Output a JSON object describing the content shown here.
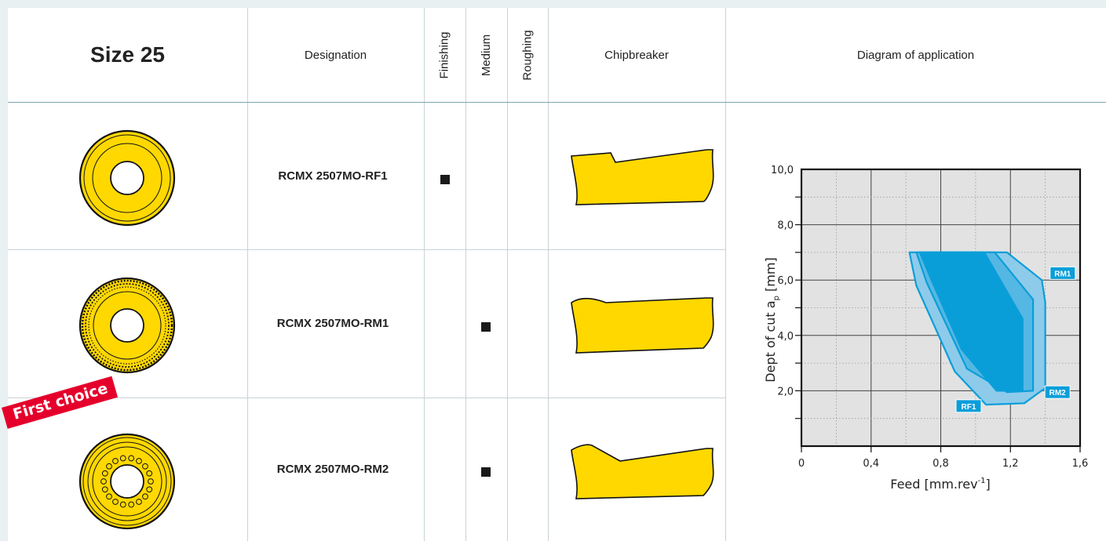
{
  "header": {
    "size_title": "Size 25",
    "designation": "Designation",
    "finishing": "Finishing",
    "medium": "Medium",
    "roughing": "Roughing",
    "chipbreaker": "Chipbreaker",
    "diagram": "Diagram of application"
  },
  "rows": [
    {
      "designation": "RCMX 2507MO-RF1",
      "finishing": "■",
      "medium": "",
      "roughing": ""
    },
    {
      "designation": "RCMX 2507MO-RM1",
      "finishing": "",
      "medium": "■",
      "roughing": ""
    },
    {
      "designation": "RCMX 2507MO-RM2",
      "finishing": "",
      "medium": "■",
      "roughing": ""
    }
  ],
  "badge": {
    "first_choice": "First choice"
  },
  "colors": {
    "insert_yellow": "#ffd800",
    "area_blue": "#0a9ed9",
    "area_blue_mid": "#55b7e3",
    "area_blue_light": "#8ecbea",
    "badge_red": "#e4002b",
    "plot_bg": "#e2e2e2"
  },
  "chart_data": {
    "type": "area",
    "xlabel": "Feed [mm.rev-1]",
    "ylabel": "Dept of cut ap [mm]",
    "xlim": [
      0,
      1.6
    ],
    "ylim": [
      0,
      10
    ],
    "x_ticks": [
      "0",
      "0,4",
      "0,8",
      "1,2",
      "1,6"
    ],
    "y_ticks": [
      "2,0",
      "4,0",
      "6,0",
      "8,0",
      "10,0"
    ],
    "grid": true,
    "series": [
      {
        "name": "RF1",
        "points": [
          [
            0.62,
            7.0
          ],
          [
            1.18,
            7.0
          ],
          [
            1.38,
            6.0
          ],
          [
            1.4,
            5.2
          ],
          [
            1.4,
            2.1
          ],
          [
            1.28,
            1.55
          ],
          [
            1.06,
            1.5
          ],
          [
            0.88,
            2.7
          ],
          [
            0.66,
            5.8
          ]
        ]
      },
      {
        "name": "RM2",
        "points": [
          [
            0.66,
            7.0
          ],
          [
            1.11,
            7.0
          ],
          [
            1.33,
            5.3
          ],
          [
            1.33,
            2.0
          ],
          [
            1.18,
            1.95
          ],
          [
            0.95,
            2.8
          ],
          [
            0.72,
            5.9
          ]
        ]
      },
      {
        "name": "RM1",
        "points": [
          [
            0.68,
            7.0
          ],
          [
            1.05,
            7.0
          ],
          [
            1.27,
            4.6
          ],
          [
            1.27,
            2.0
          ],
          [
            1.12,
            2.0
          ],
          [
            0.92,
            3.5
          ],
          [
            0.74,
            6.1
          ]
        ]
      }
    ],
    "labels": [
      "RF1",
      "RM2",
      "RM1"
    ]
  }
}
